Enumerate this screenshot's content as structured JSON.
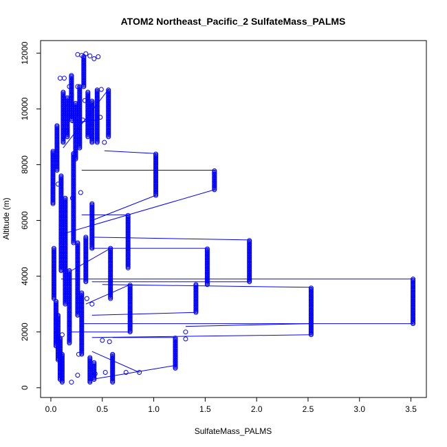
{
  "chart_data": {
    "type": "scatter",
    "title": "ATOM2 Northeast_Pacific_2 SulfateMass_PALMS",
    "xlabel": "SulfateMass_PALMS",
    "ylabel": "Altitude (m)",
    "xlim": [
      -0.1,
      3.65
    ],
    "ylim": [
      -350,
      12450
    ],
    "xticks": [
      0.0,
      0.5,
      1.0,
      1.5,
      2.0,
      2.5,
      3.0,
      3.5
    ],
    "xtick_labels": [
      "0.0",
      "0.5",
      "1.0",
      "1.5",
      "2.0",
      "2.5",
      "3.0",
      "3.5"
    ],
    "yticks": [
      0,
      2000,
      4000,
      6000,
      8000,
      10000,
      12000
    ],
    "ytick_labels": [
      "0",
      "2000",
      "4000",
      "6000",
      "8000",
      "10000",
      "12000"
    ],
    "grid": false,
    "marker": "open-circle",
    "connect_points": true,
    "series_color": "#0000ff",
    "columns": [
      {
        "x": 0.03,
        "y0": 3200,
        "y1": 5000
      },
      {
        "x": 0.05,
        "y0": 1500,
        "y1": 3100
      },
      {
        "x": 0.07,
        "y0": 1000,
        "y1": 2600
      },
      {
        "x": 0.09,
        "y0": 300,
        "y1": 1800
      },
      {
        "x": 0.11,
        "y0": 200,
        "y1": 1200
      },
      {
        "x": 0.02,
        "y0": 6600,
        "y1": 8500
      },
      {
        "x": 0.06,
        "y0": 7800,
        "y1": 9400
      },
      {
        "x": 0.1,
        "y0": 4200,
        "y1": 7600
      },
      {
        "x": 0.14,
        "y0": 3000,
        "y1": 6800
      },
      {
        "x": 0.18,
        "y0": 1600,
        "y1": 4200
      },
      {
        "x": 0.22,
        "y0": 5200,
        "y1": 8400
      },
      {
        "x": 0.26,
        "y0": 2600,
        "y1": 5200
      },
      {
        "x": 0.3,
        "y0": 1200,
        "y1": 3400
      },
      {
        "x": 0.34,
        "y0": 3800,
        "y1": 5400
      },
      {
        "x": 0.12,
        "y0": 8800,
        "y1": 10600
      },
      {
        "x": 0.16,
        "y0": 9000,
        "y1": 10400
      },
      {
        "x": 0.2,
        "y0": 9600,
        "y1": 11200
      },
      {
        "x": 0.24,
        "y0": 8200,
        "y1": 10200
      },
      {
        "x": 0.28,
        "y0": 8600,
        "y1": 10800
      },
      {
        "x": 0.32,
        "y0": 10800,
        "y1": 11900
      },
      {
        "x": 0.36,
        "y0": 9000,
        "y1": 10600
      },
      {
        "x": 0.4,
        "y0": 8800,
        "y1": 10300
      },
      {
        "x": 0.45,
        "y0": 8800,
        "y1": 10700
      },
      {
        "x": 0.56,
        "y0": 9000,
        "y1": 10700
      },
      {
        "x": 0.4,
        "y0": 5000,
        "y1": 6600
      },
      {
        "x": 0.38,
        "y0": 200,
        "y1": 1100
      },
      {
        "x": 0.42,
        "y0": 300,
        "y1": 900
      },
      {
        "x": 0.6,
        "y0": 200,
        "y1": 1200
      },
      {
        "x": 0.58,
        "y0": 3200,
        "y1": 5000
      },
      {
        "x": 0.75,
        "y0": 4300,
        "y1": 6200
      },
      {
        "x": 0.77,
        "y0": 2000,
        "y1": 3700
      },
      {
        "x": 1.02,
        "y0": 6900,
        "y1": 8400
      },
      {
        "x": 1.21,
        "y0": 700,
        "y1": 1800
      },
      {
        "x": 1.41,
        "y0": 2700,
        "y1": 3700
      },
      {
        "x": 1.52,
        "y0": 3700,
        "y1": 5000
      },
      {
        "x": 1.59,
        "y0": 7100,
        "y1": 7800
      },
      {
        "x": 1.93,
        "y0": 3800,
        "y1": 5300
      },
      {
        "x": 2.53,
        "y0": 1900,
        "y1": 3600
      },
      {
        "x": 3.52,
        "y0": 2300,
        "y1": 3900
      }
    ],
    "scatter_points": [
      {
        "x": 0.26,
        "y": 11950
      },
      {
        "x": 0.3,
        "y": 11920
      },
      {
        "x": 0.34,
        "y": 11980
      },
      {
        "x": 0.38,
        "y": 11900
      },
      {
        "x": 0.42,
        "y": 11800
      },
      {
        "x": 0.46,
        "y": 11870
      },
      {
        "x": 0.09,
        "y": 11100
      },
      {
        "x": 0.13,
        "y": 11100
      },
      {
        "x": 0.18,
        "y": 10800
      },
      {
        "x": 0.26,
        "y": 10800
      },
      {
        "x": 0.33,
        "y": 10300
      },
      {
        "x": 0.49,
        "y": 10700
      },
      {
        "x": 0.52,
        "y": 8800
      },
      {
        "x": 0.48,
        "y": 9700
      },
      {
        "x": 0.31,
        "y": 9600
      },
      {
        "x": 0.2,
        "y": 10500
      },
      {
        "x": 0.15,
        "y": 9200
      },
      {
        "x": 0.07,
        "y": 7300
      },
      {
        "x": 0.12,
        "y": 6000
      },
      {
        "x": 0.21,
        "y": 6800
      },
      {
        "x": 0.29,
        "y": 7000
      },
      {
        "x": 0.35,
        "y": 3200
      },
      {
        "x": 0.4,
        "y": 3000
      },
      {
        "x": 0.5,
        "y": 1700
      },
      {
        "x": 0.57,
        "y": 1650
      },
      {
        "x": 0.53,
        "y": 550
      },
      {
        "x": 0.73,
        "y": 550
      },
      {
        "x": 0.86,
        "y": 550
      },
      {
        "x": 0.2,
        "y": 200
      },
      {
        "x": 0.26,
        "y": 450
      },
      {
        "x": 0.43,
        "y": 500
      },
      {
        "x": 1.31,
        "y": 1750
      },
      {
        "x": 1.31,
        "y": 2000
      },
      {
        "x": 0.18,
        "y": 2300
      },
      {
        "x": 0.11,
        "y": 1900
      },
      {
        "x": 0.27,
        "y": 1200
      }
    ],
    "segments": [
      {
        "x1": 0.1,
        "y1": 3900,
        "x2": 3.52,
        "y2": 3900
      },
      {
        "x1": 0.3,
        "y1": 2300,
        "x2": 3.52,
        "y2": 2300
      },
      {
        "x1": 0.4,
        "y1": 1800,
        "x2": 2.53,
        "y2": 1900
      },
      {
        "x1": 1.31,
        "y1": 2200,
        "x2": 2.53,
        "y2": 2300
      },
      {
        "x1": 0.4,
        "y1": 3800,
        "x2": 1.93,
        "y2": 3800
      },
      {
        "x1": 0.4,
        "y1": 5400,
        "x2": 1.93,
        "y2": 5300
      },
      {
        "x1": 0.4,
        "y1": 5000,
        "x2": 1.52,
        "y2": 5000
      },
      {
        "x1": 0.5,
        "y1": 3700,
        "x2": 2.53,
        "y2": 3600
      },
      {
        "x1": 0.4,
        "y1": 2600,
        "x2": 1.41,
        "y2": 2700
      },
      {
        "x1": 0.3,
        "y1": 7800,
        "x2": 1.59,
        "y2": 7800
      },
      {
        "x1": 0.1,
        "y1": 5500,
        "x2": 1.59,
        "y2": 7100
      },
      {
        "x1": 0.4,
        "y1": 6000,
        "x2": 1.02,
        "y2": 6900
      },
      {
        "x1": 0.52,
        "y1": 8500,
        "x2": 1.02,
        "y2": 8400
      },
      {
        "x1": 0.3,
        "y1": 6200,
        "x2": 0.75,
        "y2": 6200
      },
      {
        "x1": 0.2,
        "y1": 2000,
        "x2": 0.77,
        "y2": 2000
      },
      {
        "x1": 0.4,
        "y1": 1300,
        "x2": 0.86,
        "y2": 550
      },
      {
        "x1": 0.4,
        "y1": 300,
        "x2": 1.21,
        "y2": 800
      },
      {
        "x1": 0.6,
        "y1": 1800,
        "x2": 1.21,
        "y2": 1800
      },
      {
        "x1": 0.34,
        "y1": 3000,
        "x2": 0.77,
        "y2": 3700
      },
      {
        "x1": 0.2,
        "y1": 4200,
        "x2": 0.58,
        "y2": 5000
      },
      {
        "x1": 0.12,
        "y1": 8600,
        "x2": 0.56,
        "y2": 10700
      },
      {
        "x1": 0.2,
        "y1": 9500,
        "x2": 0.45,
        "y2": 9600
      }
    ]
  }
}
